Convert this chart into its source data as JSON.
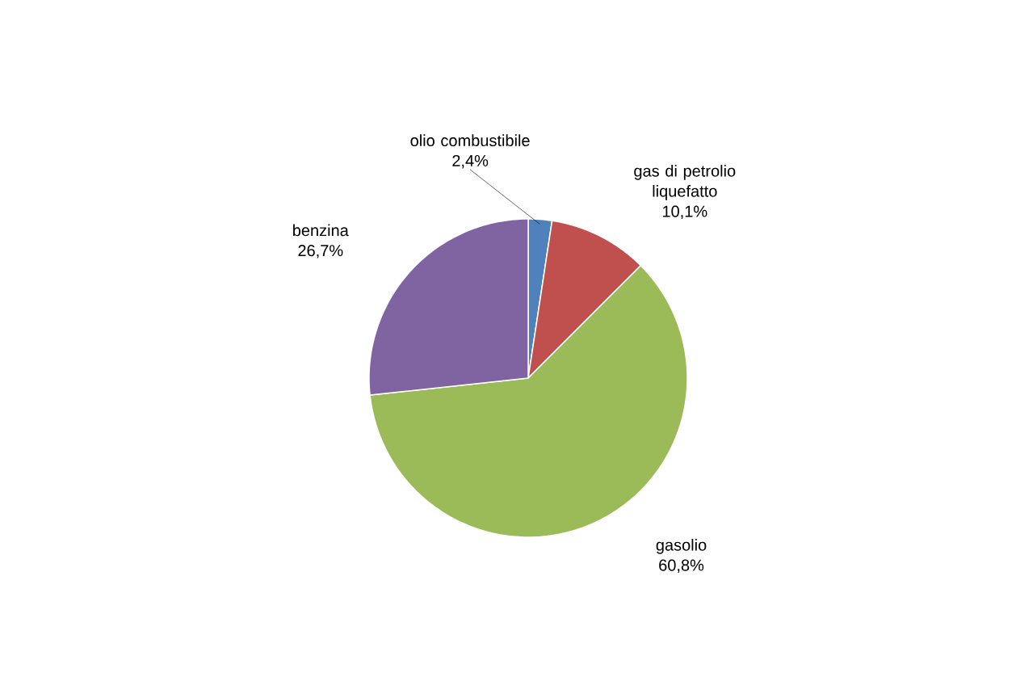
{
  "chart_data": {
    "type": "pie",
    "categories": [
      "olio combustibile",
      "gas di petrolio liquefatto",
      "gasolio",
      "benzina"
    ],
    "values": [
      2.4,
      10.1,
      60.8,
      26.7
    ],
    "colors": [
      "#4f81bd",
      "#c0504d",
      "#9bbb59",
      "#8064a2"
    ],
    "value_labels": [
      "2,4%",
      "10,1%",
      "60,8%",
      "26,7%"
    ]
  }
}
